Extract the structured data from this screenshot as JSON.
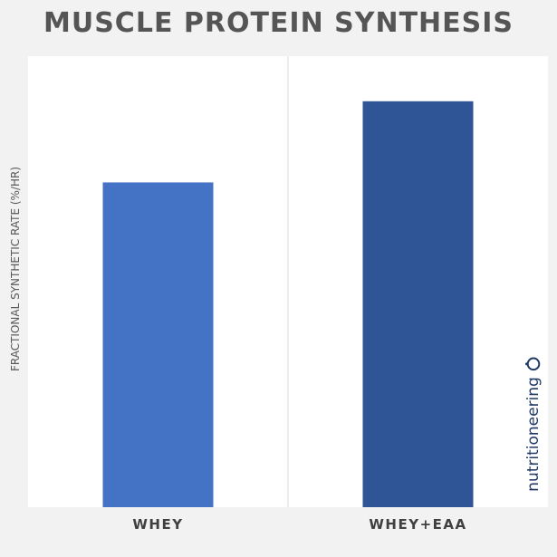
{
  "chart_data": {
    "type": "bar",
    "title": "MUSCLE PROTEIN SYNTHESIS",
    "xlabel": "",
    "ylabel": "FRACTIONAL SYNTHETIC RATE (%/HR)",
    "categories": [
      "WHEY",
      "WHEY+EAA"
    ],
    "values": [
      72,
      90
    ],
    "ylim": [
      0,
      100
    ],
    "bar_colors": [
      "#4472c4",
      "#2f5597"
    ],
    "grid": false,
    "legend": "none"
  },
  "brand": {
    "name": "nutritioneering",
    "icon": "brand-ring-icon",
    "color": "#1f3864"
  }
}
